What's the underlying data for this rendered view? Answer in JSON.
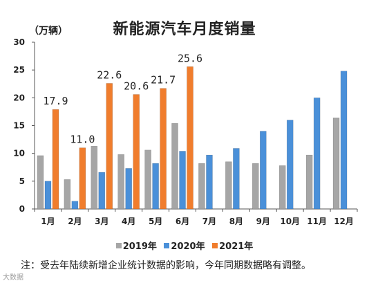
{
  "chart_data": {
    "type": "bar",
    "title": "新能源汽车月度销量",
    "ylabel": "（万辆）",
    "ylim": [
      0,
      30
    ],
    "yticks": [
      0,
      5,
      10,
      15,
      20,
      25,
      30
    ],
    "categories": [
      "1月",
      "2月",
      "3月",
      "4月",
      "5月",
      "6月",
      "7月",
      "8月",
      "9月",
      "10月",
      "11月",
      "12月"
    ],
    "series": [
      {
        "name": "2019年",
        "color": "#a6a6a6",
        "values": [
          9.6,
          5.3,
          11.3,
          9.8,
          10.6,
          15.4,
          8.2,
          8.5,
          8.2,
          7.8,
          9.7,
          16.4
        ]
      },
      {
        "name": "2020年",
        "color": "#4a90d9",
        "values": [
          5.0,
          1.4,
          6.6,
          7.3,
          8.2,
          10.4,
          9.7,
          10.9,
          14.0,
          16.0,
          20.0,
          24.8
        ]
      },
      {
        "name": "2021年",
        "color": "#f07d2d",
        "values": [
          17.9,
          11.0,
          22.6,
          20.6,
          21.7,
          25.6,
          null,
          null,
          null,
          null,
          null,
          null
        ]
      }
    ],
    "data_labels": [
      {
        "series": "2021年",
        "category": "1月",
        "text": "17.9"
      },
      {
        "series": "2021年",
        "category": "2月",
        "text": "11.0"
      },
      {
        "series": "2021年",
        "category": "3月",
        "text": "22.6"
      },
      {
        "series": "2021年",
        "category": "4月",
        "text": "20.6"
      },
      {
        "series": "2021年",
        "category": "5月",
        "text": "21.7"
      },
      {
        "series": "2021年",
        "category": "6月",
        "text": "25.6"
      }
    ],
    "grid": false,
    "legend": "bottom"
  },
  "note": "注：受去年陆续新增企业统计数据的影响，今年同期数据略有调整。",
  "watermark": "大数据"
}
